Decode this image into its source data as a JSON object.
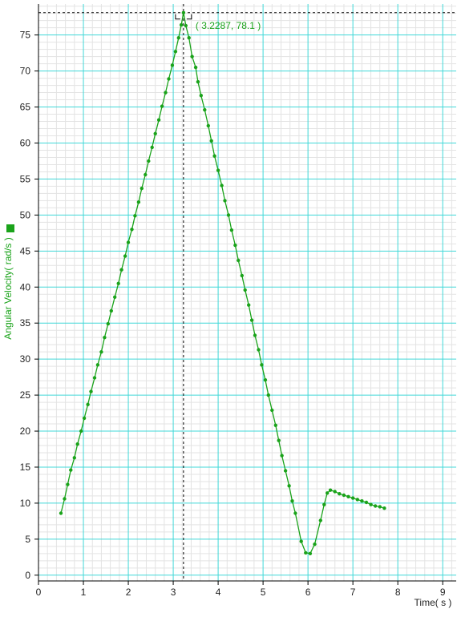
{
  "chart_data": {
    "type": "line",
    "xlabel": "Time( s )",
    "ylabel": "Angular Velocity( rad/s )",
    "xlim": [
      0,
      9.3
    ],
    "ylim": [
      -0.8,
      79.3
    ],
    "x_ticks": [
      "0",
      "1",
      "2",
      "3",
      "4",
      "5",
      "6",
      "7",
      "8",
      "9"
    ],
    "y_ticks": [
      "0",
      "5",
      "10",
      "15",
      "20",
      "25",
      "30",
      "35",
      "40",
      "45",
      "50",
      "55",
      "60",
      "65",
      "70",
      "75"
    ],
    "grid": true,
    "legend": "left-side square marker",
    "colors": {
      "series": "#1aa31a",
      "major_grid": "#40d8d8",
      "minor_grid": "#e3e3e3",
      "axis": "#000000"
    },
    "annotation": {
      "label": "( 3.2287, 78.1 )",
      "x": 3.2287,
      "y": 78.1
    },
    "series": [
      {
        "points": [
          [
            0.5,
            8.6
          ],
          [
            0.58,
            10.6
          ],
          [
            0.65,
            12.6
          ],
          [
            0.72,
            14.6
          ],
          [
            0.8,
            16.3
          ],
          [
            0.87,
            18.2
          ],
          [
            0.95,
            20.0
          ],
          [
            1.02,
            21.8
          ],
          [
            1.1,
            23.7
          ],
          [
            1.17,
            25.5
          ],
          [
            1.25,
            27.4
          ],
          [
            1.32,
            29.2
          ],
          [
            1.4,
            31.0
          ],
          [
            1.47,
            33.0
          ],
          [
            1.55,
            34.9
          ],
          [
            1.62,
            36.7
          ],
          [
            1.7,
            38.6
          ],
          [
            1.78,
            40.5
          ],
          [
            1.85,
            42.4
          ],
          [
            1.93,
            44.3
          ],
          [
            2.0,
            46.2
          ],
          [
            2.08,
            48.0
          ],
          [
            2.15,
            49.9
          ],
          [
            2.23,
            51.8
          ],
          [
            2.3,
            53.7
          ],
          [
            2.38,
            55.6
          ],
          [
            2.45,
            57.5
          ],
          [
            2.53,
            59.4
          ],
          [
            2.6,
            61.3
          ],
          [
            2.68,
            63.2
          ],
          [
            2.75,
            65.1
          ],
          [
            2.83,
            67.0
          ],
          [
            2.9,
            68.9
          ],
          [
            2.98,
            70.8
          ],
          [
            3.05,
            72.7
          ],
          [
            3.12,
            74.6
          ],
          [
            3.18,
            76.4
          ],
          [
            3.2287,
            78.1
          ],
          [
            3.28,
            76.3
          ],
          [
            3.35,
            74.6
          ],
          [
            3.42,
            72.0
          ],
          [
            3.5,
            70.5
          ],
          [
            3.55,
            68.5
          ],
          [
            3.62,
            66.6
          ],
          [
            3.7,
            64.6
          ],
          [
            3.78,
            62.4
          ],
          [
            3.85,
            60.3
          ],
          [
            3.92,
            58.2
          ],
          [
            4.0,
            56.2
          ],
          [
            4.08,
            54.1
          ],
          [
            4.15,
            52.0
          ],
          [
            4.23,
            50.0
          ],
          [
            4.3,
            47.9
          ],
          [
            4.38,
            45.8
          ],
          [
            4.45,
            43.7
          ],
          [
            4.53,
            41.6
          ],
          [
            4.6,
            39.6
          ],
          [
            4.68,
            37.5
          ],
          [
            4.75,
            35.4
          ],
          [
            4.82,
            33.3
          ],
          [
            4.9,
            31.3
          ],
          [
            4.97,
            29.2
          ],
          [
            5.05,
            27.1
          ],
          [
            5.12,
            25.0
          ],
          [
            5.2,
            22.9
          ],
          [
            5.28,
            20.8
          ],
          [
            5.35,
            18.7
          ],
          [
            5.42,
            16.6
          ],
          [
            5.5,
            14.5
          ],
          [
            5.58,
            12.4
          ],
          [
            5.65,
            10.3
          ],
          [
            5.72,
            8.6
          ],
          [
            5.85,
            4.7
          ],
          [
            5.95,
            3.1
          ],
          [
            6.05,
            3.0
          ],
          [
            6.15,
            4.3
          ],
          [
            6.28,
            7.6
          ],
          [
            6.36,
            9.8
          ],
          [
            6.43,
            11.4
          ],
          [
            6.5,
            11.8
          ],
          [
            6.6,
            11.6
          ],
          [
            6.7,
            11.3
          ],
          [
            6.8,
            11.1
          ],
          [
            6.9,
            10.9
          ],
          [
            7.0,
            10.7
          ],
          [
            7.1,
            10.5
          ],
          [
            7.2,
            10.3
          ],
          [
            7.3,
            10.1
          ],
          [
            7.4,
            9.8
          ],
          [
            7.5,
            9.6
          ],
          [
            7.6,
            9.5
          ],
          [
            7.7,
            9.3
          ]
        ]
      }
    ]
  }
}
